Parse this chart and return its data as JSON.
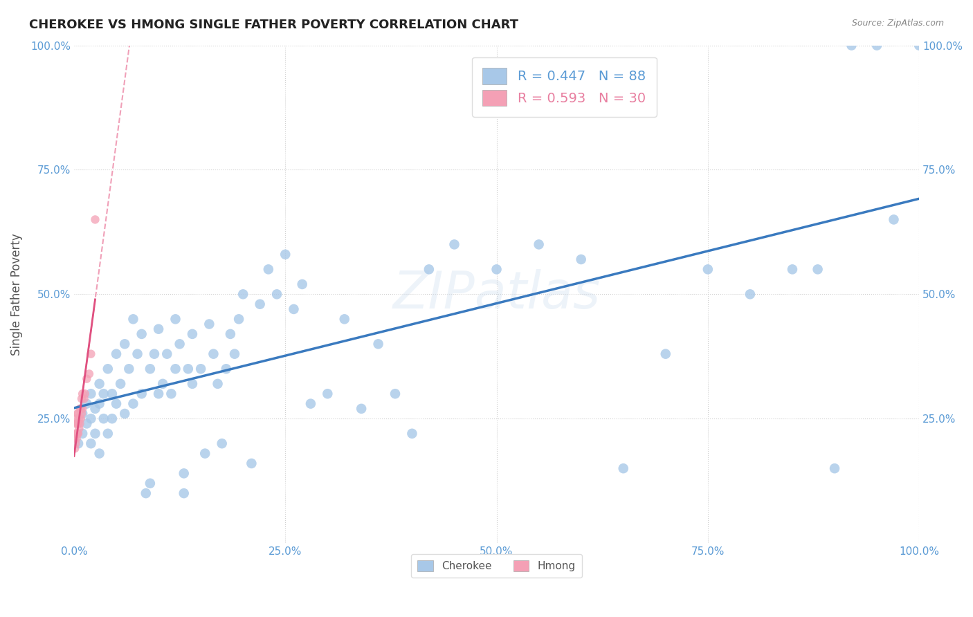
{
  "title": "CHEROKEE VS HMONG SINGLE FATHER POVERTY CORRELATION CHART",
  "source": "Source: ZipAtlas.com",
  "ylabel": "Single Father Poverty",
  "watermark": "ZIPatlas",
  "cherokee_r": 0.447,
  "cherokee_n": 88,
  "hmong_r": 0.593,
  "hmong_n": 30,
  "cherokee_color": "#a8c8e8",
  "hmong_color": "#f4a0b5",
  "cherokee_line_color": "#3a7abf",
  "hmong_line_color": "#e05080",
  "hmong_dash_color": "#f0a0b8",
  "grid_color": "#d0d0d0",
  "cherokee_x": [
    0.005,
    0.01,
    0.01,
    0.015,
    0.015,
    0.02,
    0.02,
    0.02,
    0.025,
    0.025,
    0.03,
    0.03,
    0.03,
    0.035,
    0.035,
    0.04,
    0.04,
    0.045,
    0.045,
    0.05,
    0.05,
    0.055,
    0.06,
    0.06,
    0.065,
    0.07,
    0.07,
    0.075,
    0.08,
    0.08,
    0.085,
    0.09,
    0.09,
    0.095,
    0.1,
    0.1,
    0.105,
    0.11,
    0.115,
    0.12,
    0.12,
    0.125,
    0.13,
    0.13,
    0.135,
    0.14,
    0.14,
    0.15,
    0.155,
    0.16,
    0.165,
    0.17,
    0.175,
    0.18,
    0.185,
    0.19,
    0.195,
    0.2,
    0.21,
    0.22,
    0.23,
    0.24,
    0.25,
    0.26,
    0.27,
    0.28,
    0.3,
    0.32,
    0.34,
    0.36,
    0.38,
    0.4,
    0.42,
    0.45,
    0.5,
    0.55,
    0.6,
    0.65,
    0.7,
    0.75,
    0.8,
    0.85,
    0.88,
    0.9,
    0.92,
    0.95,
    0.97,
    1.0
  ],
  "cherokee_y": [
    0.2,
    0.22,
    0.26,
    0.24,
    0.28,
    0.2,
    0.25,
    0.3,
    0.22,
    0.27,
    0.28,
    0.32,
    0.18,
    0.25,
    0.3,
    0.22,
    0.35,
    0.3,
    0.25,
    0.28,
    0.38,
    0.32,
    0.26,
    0.4,
    0.35,
    0.28,
    0.45,
    0.38,
    0.3,
    0.42,
    0.1,
    0.12,
    0.35,
    0.38,
    0.3,
    0.43,
    0.32,
    0.38,
    0.3,
    0.45,
    0.35,
    0.4,
    0.1,
    0.14,
    0.35,
    0.32,
    0.42,
    0.35,
    0.18,
    0.44,
    0.38,
    0.32,
    0.2,
    0.35,
    0.42,
    0.38,
    0.45,
    0.5,
    0.16,
    0.48,
    0.55,
    0.5,
    0.58,
    0.47,
    0.52,
    0.28,
    0.3,
    0.45,
    0.27,
    0.4,
    0.3,
    0.22,
    0.55,
    0.6,
    0.55,
    0.6,
    0.57,
    0.15,
    0.38,
    0.55,
    0.5,
    0.55,
    0.55,
    0.15,
    1.0,
    1.0,
    0.65,
    1.0
  ],
  "hmong_x": [
    0.001,
    0.001,
    0.002,
    0.002,
    0.002,
    0.003,
    0.003,
    0.003,
    0.004,
    0.004,
    0.004,
    0.005,
    0.005,
    0.005,
    0.006,
    0.006,
    0.007,
    0.007,
    0.008,
    0.008,
    0.009,
    0.009,
    0.01,
    0.01,
    0.012,
    0.013,
    0.015,
    0.018,
    0.02,
    0.025
  ],
  "hmong_y": [
    0.19,
    0.21,
    0.2,
    0.22,
    0.24,
    0.21,
    0.22,
    0.25,
    0.22,
    0.24,
    0.26,
    0.22,
    0.24,
    0.26,
    0.23,
    0.25,
    0.24,
    0.27,
    0.25,
    0.27,
    0.26,
    0.29,
    0.27,
    0.3,
    0.29,
    0.3,
    0.33,
    0.34,
    0.38,
    0.65
  ],
  "xlim": [
    0,
    1.0
  ],
  "ylim": [
    0,
    1.0
  ],
  "background_color": "#ffffff"
}
